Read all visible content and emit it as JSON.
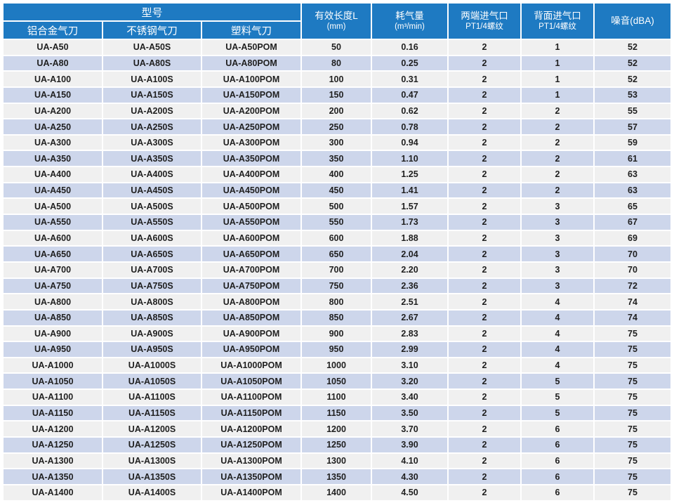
{
  "table": {
    "header": {
      "model_group_label": "型号",
      "model_columns": [
        "铝合金气刀",
        "不锈钢气刀",
        "塑料气刀"
      ],
      "spec_columns": [
        {
          "line1": "有效长度L",
          "line2": "(mm)"
        },
        {
          "line1": "耗气量",
          "line2": "(m³/min)"
        },
        {
          "line1": "两端进气口",
          "line2": "PT1/4螺纹"
        },
        {
          "line1": "背面进气口",
          "line2": "PT1/4螺纹"
        },
        {
          "line1": "噪音(dBA)",
          "line2": ""
        }
      ]
    },
    "rows": [
      [
        "UA-A50",
        "UA-A50S",
        "UA-A50POM",
        "50",
        "0.16",
        "2",
        "1",
        "52"
      ],
      [
        "UA-A80",
        "UA-A80S",
        "UA-A80POM",
        "80",
        "0.25",
        "2",
        "1",
        "52"
      ],
      [
        "UA-A100",
        "UA-A100S",
        "UA-A100POM",
        "100",
        "0.31",
        "2",
        "1",
        "52"
      ],
      [
        "UA-A150",
        "UA-A150S",
        "UA-A150POM",
        "150",
        "0.47",
        "2",
        "1",
        "53"
      ],
      [
        "UA-A200",
        "UA-A200S",
        "UA-A200POM",
        "200",
        "0.62",
        "2",
        "2",
        "55"
      ],
      [
        "UA-A250",
        "UA-A250S",
        "UA-A250POM",
        "250",
        "0.78",
        "2",
        "2",
        "57"
      ],
      [
        "UA-A300",
        "UA-A300S",
        "UA-A300POM",
        "300",
        "0.94",
        "2",
        "2",
        "59"
      ],
      [
        "UA-A350",
        "UA-A350S",
        "UA-A350POM",
        "350",
        "1.10",
        "2",
        "2",
        "61"
      ],
      [
        "UA-A400",
        "UA-A400S",
        "UA-A400POM",
        "400",
        "1.25",
        "2",
        "2",
        "63"
      ],
      [
        "UA-A450",
        "UA-A450S",
        "UA-A450POM",
        "450",
        "1.41",
        "2",
        "2",
        "63"
      ],
      [
        "UA-A500",
        "UA-A500S",
        "UA-A500POM",
        "500",
        "1.57",
        "2",
        "3",
        "65"
      ],
      [
        "UA-A550",
        "UA-A550S",
        "UA-A550POM",
        "550",
        "1.73",
        "2",
        "3",
        "67"
      ],
      [
        "UA-A600",
        "UA-A600S",
        "UA-A600POM",
        "600",
        "1.88",
        "2",
        "3",
        "69"
      ],
      [
        "UA-A650",
        "UA-A650S",
        "UA-A650POM",
        "650",
        "2.04",
        "2",
        "3",
        "70"
      ],
      [
        "UA-A700",
        "UA-A700S",
        "UA-A700POM",
        "700",
        "2.20",
        "2",
        "3",
        "70"
      ],
      [
        "UA-A750",
        "UA-A750S",
        "UA-A750POM",
        "750",
        "2.36",
        "2",
        "3",
        "72"
      ],
      [
        "UA-A800",
        "UA-A800S",
        "UA-A800POM",
        "800",
        "2.51",
        "2",
        "4",
        "74"
      ],
      [
        "UA-A850",
        "UA-A850S",
        "UA-A850POM",
        "850",
        "2.67",
        "2",
        "4",
        "74"
      ],
      [
        "UA-A900",
        "UA-A900S",
        "UA-A900POM",
        "900",
        "2.83",
        "2",
        "4",
        "75"
      ],
      [
        "UA-A950",
        "UA-A950S",
        "UA-A950POM",
        "950",
        "2.99",
        "2",
        "4",
        "75"
      ],
      [
        "UA-A1000",
        "UA-A1000S",
        "UA-A1000POM",
        "1000",
        "3.10",
        "2",
        "4",
        "75"
      ],
      [
        "UA-A1050",
        "UA-A1050S",
        "UA-A1050POM",
        "1050",
        "3.20",
        "2",
        "5",
        "75"
      ],
      [
        "UA-A1100",
        "UA-A1100S",
        "UA-A1100POM",
        "1100",
        "3.40",
        "2",
        "5",
        "75"
      ],
      [
        "UA-A1150",
        "UA-A1150S",
        "UA-A1150POM",
        "1150",
        "3.50",
        "2",
        "5",
        "75"
      ],
      [
        "UA-A1200",
        "UA-A1200S",
        "UA-A1200POM",
        "1200",
        "3.70",
        "2",
        "6",
        "75"
      ],
      [
        "UA-A1250",
        "UA-A1250S",
        "UA-A1250POM",
        "1250",
        "3.90",
        "2",
        "6",
        "75"
      ],
      [
        "UA-A1300",
        "UA-A1300S",
        "UA-A1300POM",
        "1300",
        "4.10",
        "2",
        "6",
        "75"
      ],
      [
        "UA-A1350",
        "UA-A1350S",
        "UA-A1350POM",
        "1350",
        "4.30",
        "2",
        "6",
        "75"
      ],
      [
        "UA-A1400",
        "UA-A1400S",
        "UA-A1400POM",
        "1400",
        "4.50",
        "2",
        "6",
        "75"
      ]
    ]
  },
  "colors": {
    "header_bg": "#1e7ac2",
    "header_text": "#ffffff",
    "row_even_bg": "#f0f0f0",
    "row_odd_bg": "#cdd6eb",
    "grid": "#ffffff",
    "cell_text": "#1f1f1f"
  }
}
